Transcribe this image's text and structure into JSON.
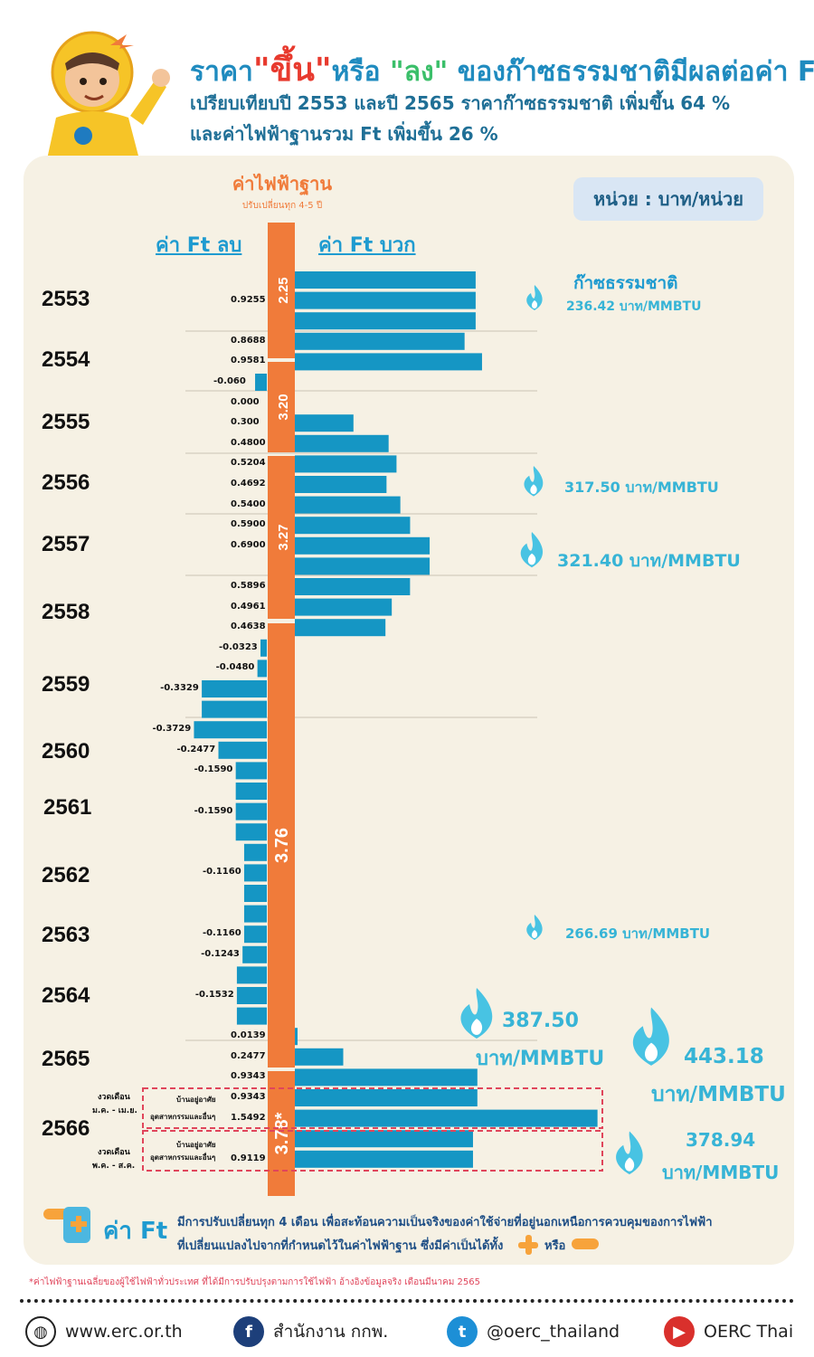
{
  "header": {
    "title_prefix": "ราคา",
    "title_up": "\"ขึ้น\"",
    "title_mid": "หรือ",
    "title_down": "\"ลง\"",
    "title_suffix": " ของก๊าซธรรมชาติมีผลต่อค่า Ft",
    "subtitle_line1": "เปรียบเทียบปี 2553 และปี 2565 ราคาก๊าซธรรมชาติ เพิ่มขึ้น 64 %",
    "subtitle_line2": "และค่าไฟฟ้าฐานรวม Ft เพิ่มขึ้น 26 %"
  },
  "labels": {
    "base_title": "ค่าไฟฟ้าฐาน",
    "base_subtitle": "ปรับเปลี่ยนทุก 4-5 ปี",
    "negative_heading": "ค่า Ft ลบ",
    "positive_heading": "ค่า Ft บวก",
    "unit": "หน่วย : บาท/หน่วย",
    "gas_heading": "ก๊าซธรรมชาติ"
  },
  "chart_data": {
    "type": "bar",
    "orientation": "horizontal-diverging",
    "x_range": [
      -0.45,
      1.6
    ],
    "base_tariff_segments": [
      {
        "value": "2.25",
        "years": "2553-2554"
      },
      {
        "value": "3.20",
        "years": "2554-2555"
      },
      {
        "value": "3.27",
        "years": "2556-2558"
      },
      {
        "value": "3.76",
        "years": "2558-2565"
      },
      {
        "value": "3.78*",
        "years": "2565-2566"
      }
    ],
    "ft_bars": [
      {
        "label": "",
        "value": 0.9255
      },
      {
        "label": "0.9255",
        "value": 0.9255
      },
      {
        "label": "",
        "value": 0.9255
      },
      {
        "label": "0.8688",
        "value": 0.8688
      },
      {
        "label": "0.9581",
        "value": 0.9581
      },
      {
        "label": "-0.060",
        "value": -0.06
      },
      {
        "label": "0.000",
        "value": 0.0
      },
      {
        "label": "0.300",
        "value": 0.3
      },
      {
        "label": "0.4800",
        "value": 0.48
      },
      {
        "label": "0.5204",
        "value": 0.5204
      },
      {
        "label": "0.4692",
        "value": 0.4692
      },
      {
        "label": "0.5400",
        "value": 0.54
      },
      {
        "label": "0.5900",
        "value": 0.59
      },
      {
        "label": "0.6900",
        "value": 0.69
      },
      {
        "label": "",
        "value": 0.69
      },
      {
        "label": "0.5896",
        "value": 0.5896
      },
      {
        "label": "0.4961",
        "value": 0.4961
      },
      {
        "label": "0.4638",
        "value": 0.4638
      },
      {
        "label": "-0.0323",
        "value": -0.0323
      },
      {
        "label": "-0.0480",
        "value": -0.048
      },
      {
        "label": "-0.3329",
        "value": -0.3329
      },
      {
        "label": "",
        "value": -0.3329
      },
      {
        "label": "-0.3729",
        "value": -0.3729
      },
      {
        "label": "-0.2477",
        "value": -0.2477
      },
      {
        "label": "-0.1590",
        "value": -0.159
      },
      {
        "label": "",
        "value": -0.159
      },
      {
        "label": "-0.1590",
        "value": -0.159
      },
      {
        "label": "",
        "value": -0.159
      },
      {
        "label": "",
        "value": -0.116
      },
      {
        "label": "-0.1160",
        "value": -0.116
      },
      {
        "label": "",
        "value": -0.116
      },
      {
        "label": "",
        "value": -0.116
      },
      {
        "label": "-0.1160",
        "value": -0.116
      },
      {
        "label": "-0.1243",
        "value": -0.1243
      },
      {
        "label": "",
        "value": -0.1532
      },
      {
        "label": "-0.1532",
        "value": -0.1532
      },
      {
        "label": "",
        "value": -0.1532
      },
      {
        "label": "0.0139",
        "value": 0.0139
      },
      {
        "label": "0.2477",
        "value": 0.2477
      },
      {
        "label": "0.9343",
        "value": 0.9343
      },
      {
        "label": "0.9343",
        "value": 0.9343
      },
      {
        "label": "1.5492",
        "value": 1.5492
      },
      {
        "label": "",
        "value": 0.9119
      },
      {
        "label": "0.9119",
        "value": 0.9119
      }
    ],
    "years": [
      "2553",
      "2554",
      "2555",
      "2556",
      "2557",
      "2558",
      "2559",
      "2560",
      "2561",
      "2562",
      "2563",
      "2564",
      "2565",
      "2566"
    ],
    "period_2566": {
      "period1": "งวดเดือน ม.ค. - เม.ย.",
      "period2": "งวดเดือน พ.ค. - ส.ค.",
      "residential": "บ้านอยู่อาศัย",
      "industrial": "อุตสาหกรรมและอื่นๆ"
    },
    "gas_prices": [
      {
        "line1": "236.42 บาท/MMBTU",
        "line2": ""
      },
      {
        "line1": "317.50 บาท/MMBTU",
        "line2": ""
      },
      {
        "line1": "321.40 บาท/MMBTU",
        "line2": ""
      },
      {
        "line1": "266.69 บาท/MMBTU",
        "line2": ""
      },
      {
        "line1": "387.50",
        "line2": "บาท/MMBTU"
      },
      {
        "line1": "443.18",
        "line2": "บาท/MMBTU"
      },
      {
        "line1": "378.94",
        "line2": "บาท/MMBTU"
      }
    ]
  },
  "legend": {
    "title": "ค่า Ft",
    "line1": "มีการปรับเปลี่ยนทุก 4 เดือน เพื่อสะท้อนความเป็นจริงของค่าใช้จ่ายที่อยู่นอกเหนือการควบคุมของการไฟฟ้า",
    "line2": "ที่เปลี่ยนแปลงไปจากที่กำหนดไว้ในค่าไฟฟ้าฐาน ซึ่งมีค่าเป็นได้ทั้ง",
    "or": "หรือ"
  },
  "footnote": "*ค่าไฟฟ้าฐานเฉลี่ยของผู้ใช้ไฟฟ้าทั่วประเทศ ที่ได้มีการปรับปรุงตามการใช้ไฟฟ้า อ้างอิงข้อมูลจริง เดือนมีนาคม 2565",
  "footer": {
    "website": "www.erc.or.th",
    "facebook": "สำนักงาน กกพ.",
    "twitter": "@oerc_thailand",
    "youtube": "OERC Thai"
  },
  "colors": {
    "bar": "#1596c4",
    "base_bar": "#f07b3a",
    "flame": "#48c3e3",
    "highlight_box": "#e0455b"
  }
}
